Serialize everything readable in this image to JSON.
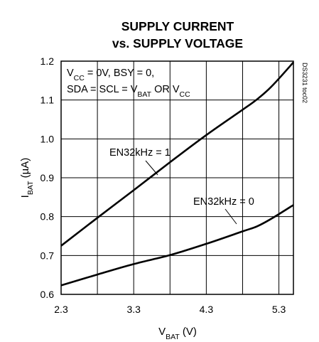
{
  "chart_data": {
    "type": "line",
    "title_line1": "SUPPLY CURRENT",
    "title_line2": "vs. SUPPLY VOLTAGE",
    "xlabel": {
      "main": "V",
      "sub": "BAT",
      "rest": " (V)"
    },
    "ylabel": {
      "main": "I",
      "sub": "BAT",
      "rest": " (µA)"
    },
    "xlim": [
      2.3,
      5.5
    ],
    "ylim": [
      0.6,
      1.2
    ],
    "x_gridlines": [
      2.3,
      2.8,
      3.3,
      3.8,
      4.3,
      4.8,
      5.3
    ],
    "y_ticks": [
      0.6,
      0.7,
      0.8,
      0.9,
      1.0,
      1.1,
      1.2
    ],
    "x_tick_labels": [
      "2.3",
      "3.3",
      "4.3",
      "5.3"
    ],
    "y_tick_labels": [
      "0.6",
      "0.7",
      "0.8",
      "0.9",
      "1.0",
      "1.1",
      "1.2"
    ],
    "grid": true,
    "conditions": {
      "line1": [
        {
          "t": "V",
          "s": "CC"
        },
        {
          "t": " = 0V, BSY = 0,"
        }
      ],
      "line2": [
        {
          "t": "SDA = SCL = V"
        },
        {
          "t": "",
          "s": "BAT"
        },
        {
          "t": " OR V"
        },
        {
          "t": "",
          "s": "CC"
        }
      ]
    },
    "figure_code": "DS3231 toc02",
    "series": [
      {
        "name": "EN32kHz = 1",
        "x": [
          2.3,
          2.8,
          3.3,
          3.8,
          4.3,
          4.8,
          5.0,
          5.2,
          5.5
        ],
        "y": [
          0.725,
          0.797,
          0.868,
          0.94,
          1.01,
          1.075,
          1.102,
          1.135,
          1.197
        ]
      },
      {
        "name": "EN32kHz = 0",
        "x": [
          2.3,
          2.8,
          3.3,
          3.8,
          4.3,
          4.8,
          5.0,
          5.2,
          5.5
        ],
        "y": [
          0.623,
          0.651,
          0.678,
          0.701,
          0.73,
          0.762,
          0.775,
          0.795,
          0.83
        ]
      }
    ]
  }
}
